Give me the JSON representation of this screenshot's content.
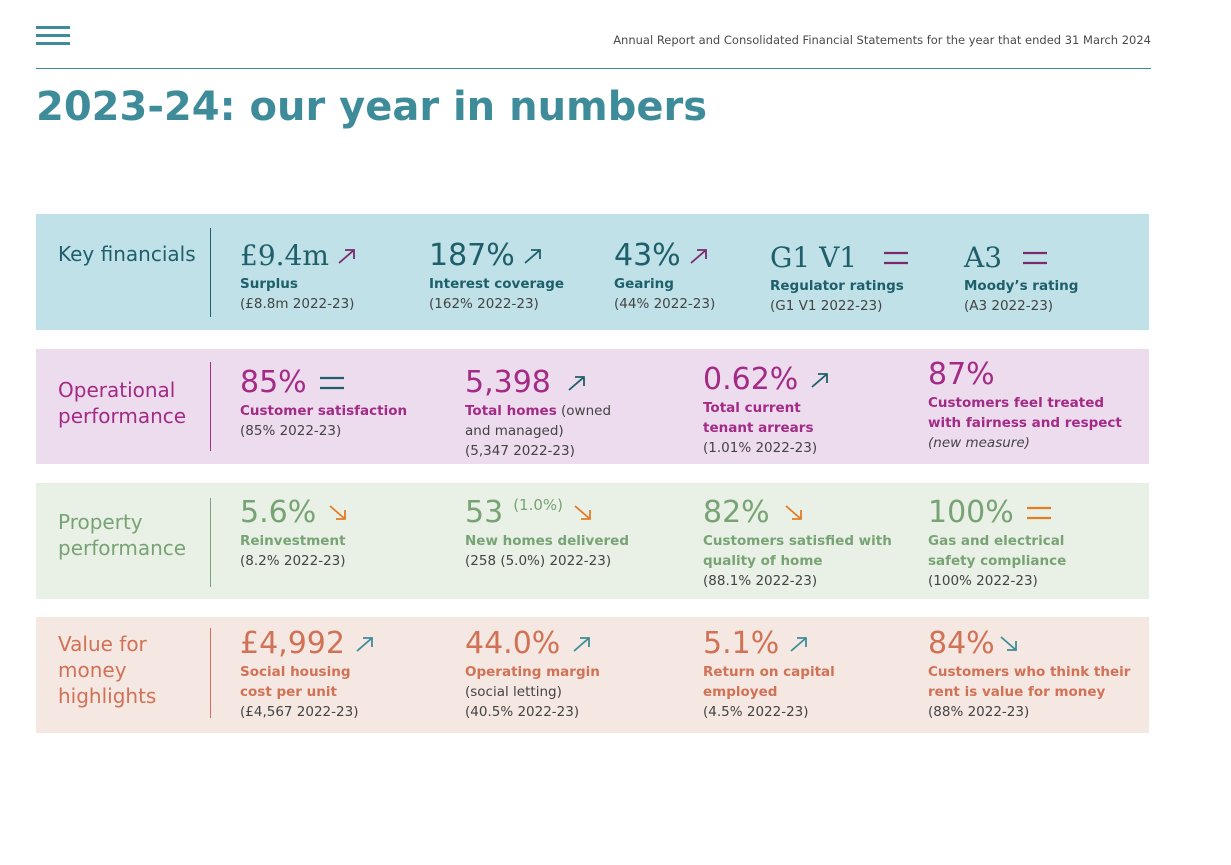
{
  "header": {
    "menu_icon": "hamburger-menu-icon",
    "document_title": "Annual Report and Consolidated Financial Statements for the year that ended 31 March 2024",
    "page_title": "2023-24: our year in numbers"
  },
  "colors": {
    "teal": "#3e8c9a",
    "key_bg": "#bfe1e7",
    "key_text": "#1e5f6b",
    "op_bg": "#ecdcee",
    "op_text": "#a32b85",
    "prop_bg": "#e9f0e6",
    "prop_text": "#78a374",
    "vfm_bg": "#f5e7e1",
    "vfm_text": "#d17256",
    "arrow_purple": "#7a2a6e",
    "arrow_dark": "#1e5f6b",
    "arrow_orange": "#e07e28",
    "arrow_teal": "#3e8c9a",
    "arrow_pink": "#d17256"
  },
  "sections": {
    "key": {
      "label": "Key financials",
      "metrics": [
        {
          "value": "£9.4m",
          "label": "Surplus",
          "sub": "(£8.8m 2022-23)",
          "indicator": "up-arrow-icon"
        },
        {
          "value": "187%",
          "label": "Interest coverage",
          "sub": "(162% 2022-23)",
          "indicator": "up-arrow-icon"
        },
        {
          "value": "43%",
          "label": "Gearing",
          "sub": "(44% 2022-23)",
          "indicator": "up-arrow-icon"
        },
        {
          "value": "G1 V1",
          "label": "Regulator ratings",
          "sub": "(G1 V1 2022-23)",
          "indicator": "equal-icon"
        },
        {
          "value": "A3",
          "label": "Moody’s rating",
          "sub": "(A3 2022-23)",
          "indicator": "equal-icon"
        }
      ]
    },
    "operational": {
      "label_line1": "Operational",
      "label_line2": "performance",
      "metrics": [
        {
          "value": "85%",
          "label": "Customer satisfaction",
          "sub": "(85% 2022-23)",
          "indicator": "equal-icon"
        },
        {
          "value": "5,398",
          "label": "Total homes",
          "label_suffix": " (owned",
          "label_line2": "and managed)",
          "sub": "(5,347 2022-23)",
          "indicator": "up-arrow-icon"
        },
        {
          "value": "0.62%",
          "label_line1": "Total current",
          "label_line2": "tenant arrears",
          "sub": "(1.01% 2022-23)",
          "indicator": "up-arrow-icon"
        },
        {
          "value": "87%",
          "label_line1": "Customers feel treated",
          "label_line2": "with fairness and respect",
          "sub": "(new measure)"
        }
      ]
    },
    "property": {
      "label_line1": "Property",
      "label_line2": "performance",
      "metrics": [
        {
          "value": "5.6%",
          "label": "Reinvestment",
          "sub": "(8.2% 2022-23)",
          "indicator": "down-arrow-icon"
        },
        {
          "value": "53",
          "value_extra": "(1.0%)",
          "label": "New homes delivered",
          "sub": "(258 (5.0%) 2022-23)",
          "indicator": "down-arrow-icon"
        },
        {
          "value": "82%",
          "label_line1": "Customers satisfied with",
          "label_line2": "quality of home",
          "sub": "(88.1% 2022-23)",
          "indicator": "down-arrow-icon"
        },
        {
          "value": "100%",
          "label_line1": "Gas and electrical",
          "label_line2": "safety compliance",
          "sub": "(100% 2022-23)",
          "indicator": "equal-icon"
        }
      ]
    },
    "vfm": {
      "label_line1": "Value for",
      "label_line2": "money",
      "label_line3": "highlights",
      "metrics": [
        {
          "value": "£4,992",
          "label_line1": "Social housing",
          "label_line2": "cost per unit",
          "sub": "(£4,567 2022-23)",
          "indicator": "up-arrow-icon"
        },
        {
          "value": "44.0%",
          "label": "Operating margin",
          "sub_line1": "(social letting)",
          "sub": "(40.5% 2022-23)",
          "indicator": "up-arrow-icon"
        },
        {
          "value": "5.1%",
          "label_line1": "Return on capital",
          "label_line2": "employed",
          "sub": "(4.5% 2022-23)",
          "indicator": "up-arrow-icon"
        },
        {
          "value": "84%",
          "label_line1": "Customers who think their",
          "label_line2": "rent is value for money",
          "sub": "(88% 2022-23)",
          "indicator": "down-arrow-icon"
        }
      ]
    }
  }
}
